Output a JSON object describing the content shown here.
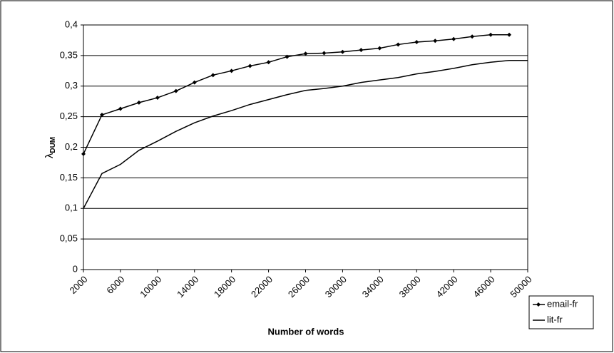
{
  "chart_data": {
    "type": "line",
    "x_label": "Number of words",
    "y_label": "λ",
    "y_label_subscript": "DUM",
    "x": [
      2000,
      4000,
      6000,
      8000,
      10000,
      12000,
      14000,
      16000,
      18000,
      20000,
      22000,
      24000,
      26000,
      28000,
      30000,
      32000,
      34000,
      36000,
      38000,
      40000,
      42000,
      44000,
      46000,
      48000,
      50000
    ],
    "series": [
      {
        "name": "email-fr",
        "color": "#000000",
        "marker": true,
        "values": [
          0.189,
          0.253,
          0.263,
          0.273,
          0.281,
          0.292,
          0.306,
          0.318,
          0.325,
          0.333,
          0.339,
          0.348,
          0.353,
          0.354,
          0.356,
          0.359,
          0.362,
          0.368,
          0.372,
          0.374,
          0.377,
          0.381,
          0.384,
          0.384,
          null
        ]
      },
      {
        "name": "lit-fr",
        "color": "#000000",
        "marker": false,
        "values": [
          0.1,
          0.157,
          0.172,
          0.195,
          0.21,
          0.226,
          0.24,
          0.251,
          0.26,
          0.27,
          0.278,
          0.286,
          0.293,
          0.296,
          0.3,
          0.306,
          0.31,
          0.314,
          0.32,
          0.324,
          0.329,
          0.335,
          0.339,
          0.342,
          0.342
        ]
      }
    ],
    "xlim": [
      2000,
      50000
    ],
    "xticks": [
      2000,
      6000,
      10000,
      14000,
      18000,
      22000,
      26000,
      30000,
      34000,
      38000,
      42000,
      46000,
      50000
    ],
    "ylim": [
      0,
      0.4
    ],
    "yticks": [
      0,
      {
        "value": 0.05,
        "label": "0,05"
      },
      {
        "value": 0.1,
        "label": "0,1"
      },
      {
        "value": 0.15,
        "label": "0,15"
      },
      {
        "value": 0.2,
        "label": "0,2"
      },
      {
        "value": 0.25,
        "label": "0,25"
      },
      {
        "value": 0.3,
        "label": "0,3"
      },
      {
        "value": 0.35,
        "label": "0,35"
      },
      {
        "value": 0.4,
        "label": "0,4"
      }
    ],
    "grid": true,
    "legend": "right"
  }
}
